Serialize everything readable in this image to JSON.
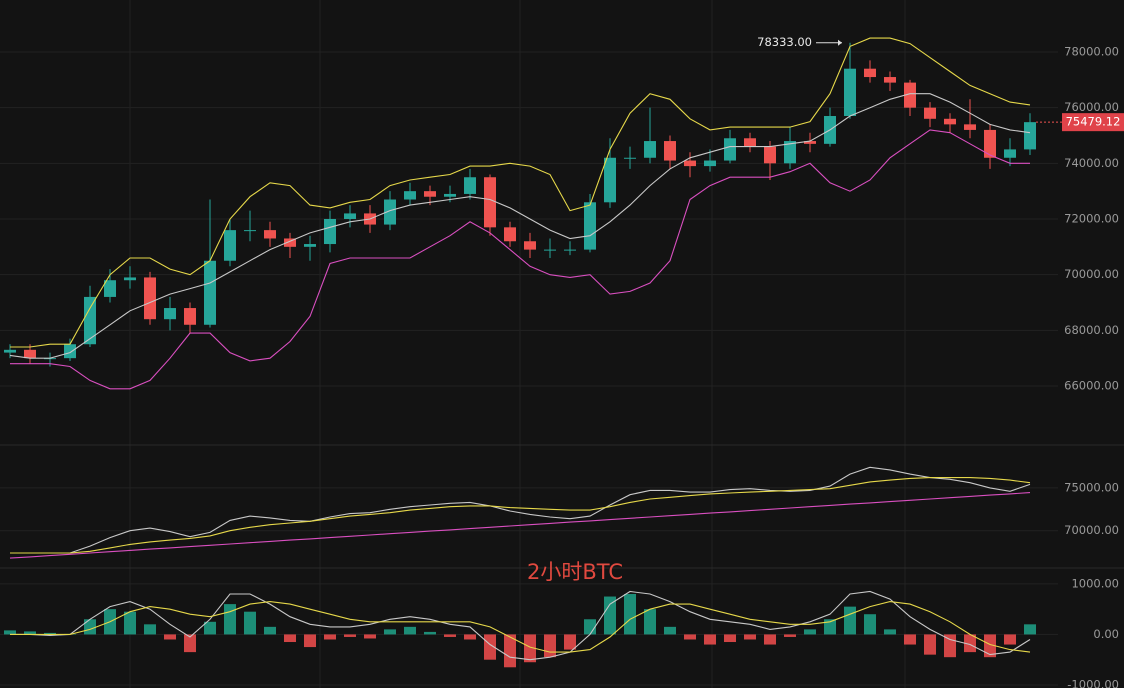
{
  "chart_data": [
    {
      "type": "candlestick",
      "up_color": "#26a69a",
      "down_color": "#ef5350",
      "grid": true,
      "ylim": [
        63880,
        79868
      ],
      "yticks": [
        {
          "value": 66000,
          "label": "66000.00"
        },
        {
          "value": 68000,
          "label": "68000.00"
        },
        {
          "value": 70000,
          "label": "70000.00"
        },
        {
          "value": 72000,
          "label": "72000.00"
        },
        {
          "value": 74000,
          "label": "74000.00"
        },
        {
          "value": 76000,
          "label": "76000.00"
        },
        {
          "value": 78000,
          "label": "78000.00"
        }
      ],
      "max_label": "78333.00",
      "open": [
        67200,
        67300,
        67000,
        67000,
        67500,
        69200,
        69800,
        69900,
        68400,
        68800,
        68200,
        70500,
        71600,
        71600,
        71300,
        71000,
        71100,
        72000,
        72200,
        71800,
        72700,
        73000,
        72800,
        72900,
        73500,
        71700,
        71200,
        70900,
        70900,
        70900,
        72600,
        74200,
        74200,
        74800,
        74100,
        73900,
        74100,
        74900,
        74600,
        74000,
        74800,
        74700,
        75700,
        77400,
        77100,
        76900,
        76000,
        75600,
        75400,
        75200,
        74200,
        74500
      ],
      "high": [
        67500,
        67500,
        67200,
        67700,
        69600,
        70200,
        70300,
        70100,
        69200,
        69000,
        72700,
        72000,
        72300,
        71900,
        71500,
        71400,
        72300,
        72500,
        72500,
        73000,
        73300,
        73200,
        73200,
        73800,
        73600,
        71900,
        71500,
        71300,
        71200,
        72900,
        74900,
        74600,
        76000,
        75000,
        74400,
        74500,
        75200,
        75100,
        74800,
        75300,
        75100,
        76000,
        78333,
        77700,
        77300,
        77000,
        76200,
        75800,
        76300,
        75400,
        74900,
        75800
      ],
      "low": [
        67000,
        66800,
        66700,
        66900,
        67400,
        69000,
        69500,
        68200,
        68000,
        67900,
        68100,
        70300,
        71200,
        71000,
        70600,
        70500,
        70800,
        71700,
        71500,
        71600,
        72500,
        72500,
        72600,
        72700,
        71400,
        71000,
        70600,
        70600,
        70700,
        70800,
        72400,
        73800,
        74000,
        73800,
        73500,
        73700,
        74000,
        74400,
        73400,
        73800,
        74400,
        74600,
        75600,
        76900,
        76600,
        75700,
        75300,
        75100,
        74900,
        73800,
        73900,
        74300
      ],
      "close": [
        67300,
        67000,
        67000,
        67500,
        69200,
        69800,
        69900,
        68400,
        68800,
        68200,
        70500,
        71600,
        71600,
        71300,
        71000,
        71100,
        72000,
        72200,
        71800,
        72700,
        73000,
        72800,
        72900,
        73500,
        71700,
        71200,
        70900,
        70900,
        70900,
        72600,
        74200,
        74200,
        74800,
        74100,
        73900,
        74100,
        74900,
        74600,
        74000,
        74800,
        74700,
        75700,
        77400,
        77100,
        76900,
        76000,
        75600,
        75400,
        75200,
        74200,
        74500,
        75479.12
      ],
      "series": [
        {
          "color": "#e6d84a",
          "values": [
            67400,
            67400,
            67500,
            67500,
            68800,
            70000,
            70600,
            70600,
            70200,
            70000,
            70500,
            72000,
            72800,
            73300,
            73200,
            72500,
            72400,
            72600,
            72700,
            73200,
            73400,
            73500,
            73600,
            73900,
            73900,
            74000,
            73900,
            73600,
            72300,
            72500,
            74500,
            75800,
            76500,
            76300,
            75600,
            75200,
            75300,
            75300,
            75300,
            75300,
            75500,
            76500,
            78200,
            78500,
            78500,
            78300,
            77800,
            77300,
            76800,
            76500,
            76200,
            76100
          ]
        },
        {
          "color": "#c8c8c8",
          "values": [
            67100,
            67000,
            67000,
            67200,
            67700,
            68200,
            68700,
            69000,
            69300,
            69500,
            69700,
            70100,
            70500,
            70900,
            71200,
            71500,
            71700,
            71900,
            72000,
            72300,
            72500,
            72600,
            72700,
            72800,
            72700,
            72400,
            72000,
            71600,
            71300,
            71400,
            71900,
            72500,
            73200,
            73800,
            74200,
            74400,
            74600,
            74600,
            74600,
            74700,
            74800,
            75200,
            75700,
            76000,
            76300,
            76500,
            76500,
            76200,
            75800,
            75400,
            75200,
            75100
          ]
        },
        {
          "color": "#d94fc0",
          "values": [
            66800,
            66800,
            66800,
            66700,
            66200,
            65900,
            65900,
            66200,
            67000,
            67900,
            67900,
            67200,
            66900,
            67000,
            67600,
            68500,
            70400,
            70600,
            70600,
            70600,
            70600,
            71000,
            71400,
            71900,
            71500,
            70900,
            70300,
            70000,
            69900,
            70000,
            69300,
            69400,
            69700,
            70500,
            72700,
            73200,
            73500,
            73500,
            73500,
            73700,
            74000,
            73300,
            73000,
            73400,
            74200,
            74700,
            75200,
            75100,
            74700,
            74300,
            74000,
            74000
          ]
        }
      ]
    },
    {
      "type": "line",
      "grid": true,
      "ylim": [
        66000,
        80000
      ],
      "yticks": [
        {
          "value": 70000,
          "label": "70000.00"
        },
        {
          "value": 75000,
          "label": "75000.00"
        }
      ],
      "watermark": "2小时BTC",
      "series": [
        {
          "color": "#c8c8c8",
          "values": [
            67400,
            67400,
            67400,
            67400,
            68200,
            69200,
            70000,
            70300,
            69900,
            69300,
            69800,
            71200,
            71700,
            71500,
            71200,
            71100,
            71600,
            72000,
            72100,
            72500,
            72800,
            73000,
            73200,
            73300,
            72900,
            72300,
            71900,
            71600,
            71400,
            71700,
            73000,
            74200,
            74700,
            74700,
            74500,
            74500,
            74800,
            74900,
            74700,
            74600,
            74700,
            75200,
            76600,
            77400,
            77100,
            76600,
            76200,
            76000,
            75600,
            75000,
            74600,
            75400
          ]
        },
        {
          "color": "#e6d84a",
          "values": [
            67400,
            67400,
            67400,
            67400,
            67600,
            68000,
            68400,
            68700,
            68900,
            69100,
            69400,
            70000,
            70400,
            70700,
            70900,
            71100,
            71400,
            71700,
            71900,
            72100,
            72400,
            72600,
            72800,
            72900,
            72900,
            72700,
            72600,
            72500,
            72400,
            72400,
            72800,
            73300,
            73700,
            73900,
            74100,
            74300,
            74400,
            74500,
            74600,
            74700,
            74800,
            74900,
            75300,
            75700,
            75900,
            76100,
            76200,
            76200,
            76200,
            76100,
            75900,
            75600
          ]
        },
        {
          "color": "#d94fc0",
          "values": [
            66800,
            66950,
            67100,
            67250,
            67400,
            67550,
            67700,
            67850,
            68000,
            68150,
            68300,
            68450,
            68600,
            68750,
            68900,
            69050,
            69200,
            69350,
            69500,
            69650,
            69800,
            69950,
            70100,
            70250,
            70400,
            70550,
            70700,
            70850,
            71000,
            71150,
            71300,
            71450,
            71600,
            71750,
            71900,
            72050,
            72200,
            72350,
            72500,
            72650,
            72800,
            72950,
            73100,
            73250,
            73400,
            73550,
            73700,
            73850,
            74000,
            74150,
            74300,
            74450
          ]
        }
      ]
    },
    {
      "type": "bar",
      "grid": true,
      "up_color": "#1f9c84",
      "down_color": "#e84b4b",
      "ylim": [
        -1060,
        1275
      ],
      "yticks": [
        {
          "value": 1000,
          "label": "1000.00"
        },
        {
          "value": 0,
          "label": "0.00"
        },
        {
          "value": -1000,
          "label": "-1000.00"
        }
      ],
      "values": [
        80,
        60,
        30,
        10,
        300,
        500,
        450,
        200,
        -100,
        -350,
        250,
        600,
        450,
        150,
        -150,
        -250,
        -100,
        -50,
        -80,
        100,
        150,
        50,
        -50,
        -100,
        -500,
        -650,
        -550,
        -450,
        -300,
        300,
        750,
        800,
        500,
        150,
        -100,
        -200,
        -150,
        -100,
        -200,
        -50,
        100,
        300,
        550,
        400,
        100,
        -200,
        -400,
        -450,
        -350,
        -450,
        -200,
        200
      ],
      "series": [
        {
          "color": "#c8c8c8",
          "values": [
            0,
            0,
            -20,
            0,
            300,
            550,
            650,
            500,
            200,
            -50,
            300,
            800,
            800,
            600,
            350,
            200,
            150,
            150,
            200,
            300,
            350,
            300,
            200,
            150,
            -200,
            -450,
            -500,
            -450,
            -350,
            0,
            600,
            850,
            800,
            650,
            450,
            300,
            250,
            200,
            100,
            150,
            250,
            400,
            800,
            850,
            700,
            350,
            100,
            -100,
            -200,
            -400,
            -350,
            -100
          ]
        },
        {
          "color": "#e6d84a",
          "values": [
            0,
            0,
            0,
            0,
            100,
            250,
            450,
            550,
            500,
            400,
            350,
            450,
            600,
            650,
            600,
            500,
            400,
            300,
            250,
            250,
            250,
            250,
            250,
            250,
            150,
            -50,
            -250,
            -350,
            -350,
            -300,
            -50,
            300,
            500,
            600,
            600,
            500,
            400,
            300,
            250,
            200,
            200,
            250,
            400,
            550,
            650,
            600,
            450,
            250,
            0,
            -200,
            -300,
            -350
          ]
        }
      ]
    }
  ]
}
